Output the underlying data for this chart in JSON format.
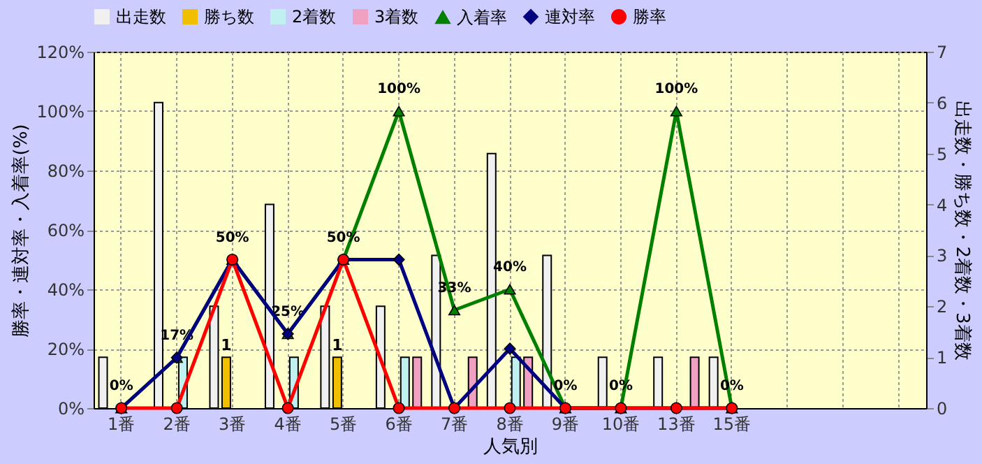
{
  "chart_data": {
    "type": "bar",
    "xlabel": "人気別",
    "ylabel": "勝率・連対率・入着率(%)",
    "y2label": "出走数・勝ち数・2着数・3着数",
    "categories": [
      "1番",
      "2番",
      "3番",
      "4番",
      "5番",
      "6番",
      "7番",
      "8番",
      "9番",
      "10番",
      "13番",
      "15番",
      null,
      null,
      null
    ],
    "series": [
      {
        "name": "出走数",
        "axis": "y2",
        "color": "#f0f0f0",
        "values": [
          1,
          6,
          2,
          4,
          2,
          2,
          3,
          5,
          3,
          1,
          1,
          1,
          null,
          null,
          null
        ]
      },
      {
        "name": "勝ち数",
        "axis": "y2",
        "color": "#f0c000",
        "values": [
          0,
          0,
          1,
          0,
          1,
          0,
          0,
          0,
          0,
          0,
          0,
          0,
          null,
          null,
          null
        ],
        "value_labels": [
          null,
          null,
          "1",
          null,
          "1",
          null,
          null,
          null,
          null,
          null,
          null,
          null,
          null,
          null,
          null
        ]
      },
      {
        "name": "2着数",
        "axis": "y2",
        "color": "#c0f0f0",
        "values": [
          0,
          1,
          0,
          1,
          0,
          1,
          0,
          1,
          0,
          0,
          0,
          0,
          null,
          null,
          null
        ]
      },
      {
        "name": "3着数",
        "axis": "y2",
        "color": "#f0a0c0",
        "values": [
          0,
          0,
          0,
          0,
          0,
          1,
          1,
          1,
          0,
          0,
          1,
          0,
          null,
          null,
          null
        ]
      },
      {
        "name": "入着率",
        "type": "line",
        "color": "#008000",
        "marker": "triangle",
        "values": [
          0,
          17,
          50,
          25,
          50,
          100,
          33,
          40,
          0,
          0,
          100,
          0,
          null,
          null,
          null
        ],
        "value_labels": [
          "0%",
          "17%",
          "50%",
          "25%",
          "50%",
          "100%",
          "33%",
          "40%",
          "0%",
          "0%",
          "100%",
          "0%",
          null,
          null,
          null
        ]
      },
      {
        "name": "連対率",
        "type": "line",
        "color": "#000080",
        "marker": "diamond",
        "values": [
          0,
          17,
          50,
          25,
          50,
          50,
          0,
          20,
          0,
          0,
          0,
          0,
          null,
          null,
          null
        ]
      },
      {
        "name": "勝率",
        "type": "line",
        "color": "#ff0000",
        "marker": "circle",
        "values": [
          0,
          0,
          50,
          0,
          50,
          0,
          0,
          0,
          0,
          0,
          0,
          0,
          null,
          null,
          null
        ]
      }
    ],
    "ylim": [
      0,
      120
    ],
    "yticks": [
      {
        "value": 0,
        "label": "0%"
      },
      {
        "value": 20,
        "label": "20%"
      },
      {
        "value": 40,
        "label": "40%"
      },
      {
        "value": 60,
        "label": "60%"
      },
      {
        "value": 80,
        "label": "80%"
      },
      {
        "value": 100,
        "label": "100%"
      },
      {
        "value": 120,
        "label": "120%"
      }
    ],
    "y2lim": [
      0,
      7
    ],
    "y2ticks": [
      0,
      1,
      2,
      3,
      4,
      5,
      6,
      7
    ],
    "grid": true,
    "legend": "top"
  }
}
